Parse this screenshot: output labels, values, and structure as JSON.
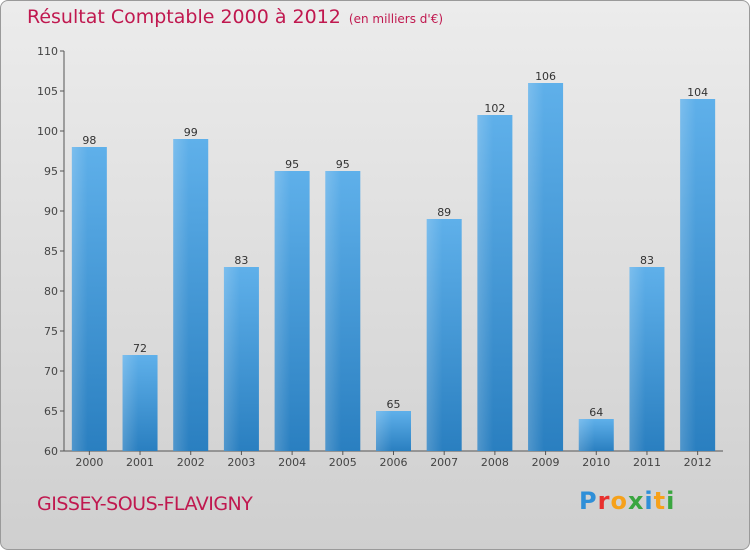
{
  "header": {
    "title": "Résultat Comptable 2000 à 2012",
    "subtitle": "(en milliers d'€)"
  },
  "footer": {
    "city": "GISSEY-SOUS-FLAVIGNY",
    "logo": "Proxiti"
  },
  "colors": {
    "title": "#c0184f",
    "bar_light": "#5fb0ea",
    "bar_dark": "#2a7fc0"
  },
  "chart_data": {
    "type": "bar",
    "title": "Résultat Comptable 2000 à 2012",
    "ylabel": "(en milliers d'€)",
    "xlabel": "",
    "categories": [
      "2000",
      "2001",
      "2002",
      "2003",
      "2004",
      "2005",
      "2006",
      "2007",
      "2008",
      "2009",
      "2010",
      "2011",
      "2012"
    ],
    "values": [
      98,
      72,
      99,
      83,
      95,
      95,
      65,
      89,
      102,
      106,
      64,
      83,
      104
    ],
    "ylim": [
      60,
      110
    ],
    "yticks": [
      60,
      65,
      70,
      75,
      80,
      85,
      90,
      95,
      100,
      105,
      110
    ],
    "grid": false,
    "legend": "none"
  }
}
